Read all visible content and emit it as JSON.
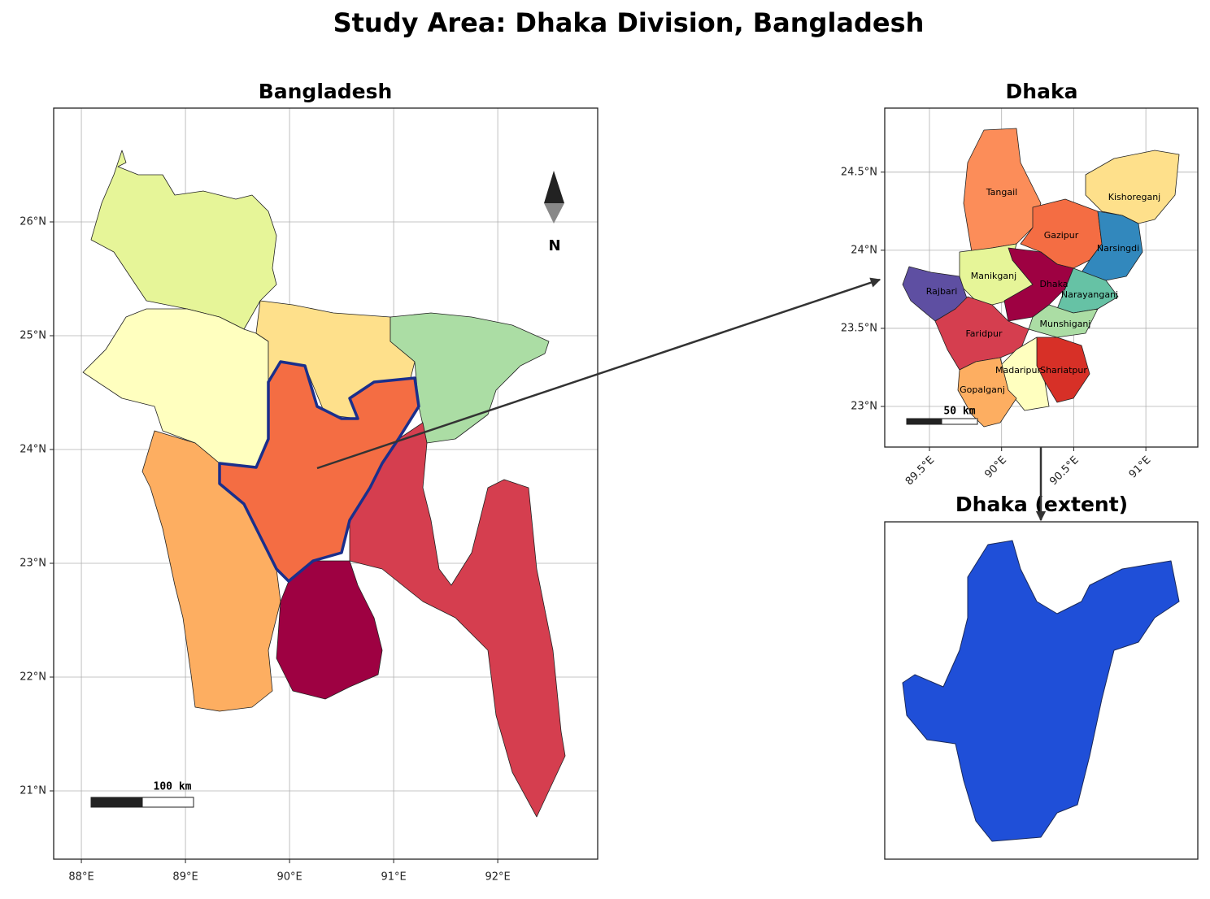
{
  "title": "Study Area: Dhaka Division, Bangladesh",
  "panels": [
    {
      "title": "Bangladesh",
      "xlim": [
        87.734,
        92.96
      ],
      "ylim": [
        20.4,
        27.0
      ],
      "xticks": [
        {
          "value": 88,
          "label": "88°E"
        },
        {
          "value": 89,
          "label": "89°E"
        },
        {
          "value": 90,
          "label": "90°E"
        },
        {
          "value": 91,
          "label": "91°E"
        },
        {
          "value": 92,
          "label": "92°E"
        }
      ],
      "yticks": [
        {
          "value": 21,
          "label": "21°N"
        },
        {
          "value": 22,
          "label": "22°N"
        },
        {
          "value": 23,
          "label": "23°N"
        },
        {
          "value": 24,
          "label": "24°N"
        },
        {
          "value": 25,
          "label": "25°N"
        },
        {
          "value": 26,
          "label": "26°N"
        }
      ],
      "grid": true,
      "north": "N",
      "scale_bar": "100 km"
    },
    {
      "title": "Dhaka",
      "xlim": [
        89.19,
        91.36
      ],
      "ylim": [
        22.74,
        24.91
      ],
      "xticks": [
        {
          "value": 89.5,
          "label": "89.5°E"
        },
        {
          "value": 90,
          "label": "90°E"
        },
        {
          "value": 90.5,
          "label": "90.5°E"
        },
        {
          "value": 91,
          "label": "91°E"
        }
      ],
      "yticks": [
        {
          "value": 23,
          "label": "23°N"
        },
        {
          "value": 23.5,
          "label": "23.5°N"
        },
        {
          "value": 24,
          "label": "24°N"
        },
        {
          "value": 24.5,
          "label": "24.5°N"
        }
      ],
      "grid": true,
      "scale_bar": "50 km",
      "districts": [
        "Tangail",
        "Kishoreganj",
        "Gazipur",
        "Narsingdi",
        "Manikganj",
        "Dhaka",
        "Narayanganj",
        "Rajbari",
        "Munshiganj",
        "Faridpur",
        "Madaripur",
        "Shariatpur",
        "Gopalganj"
      ]
    },
    {
      "title": "Dhaka (extent)"
    }
  ]
}
